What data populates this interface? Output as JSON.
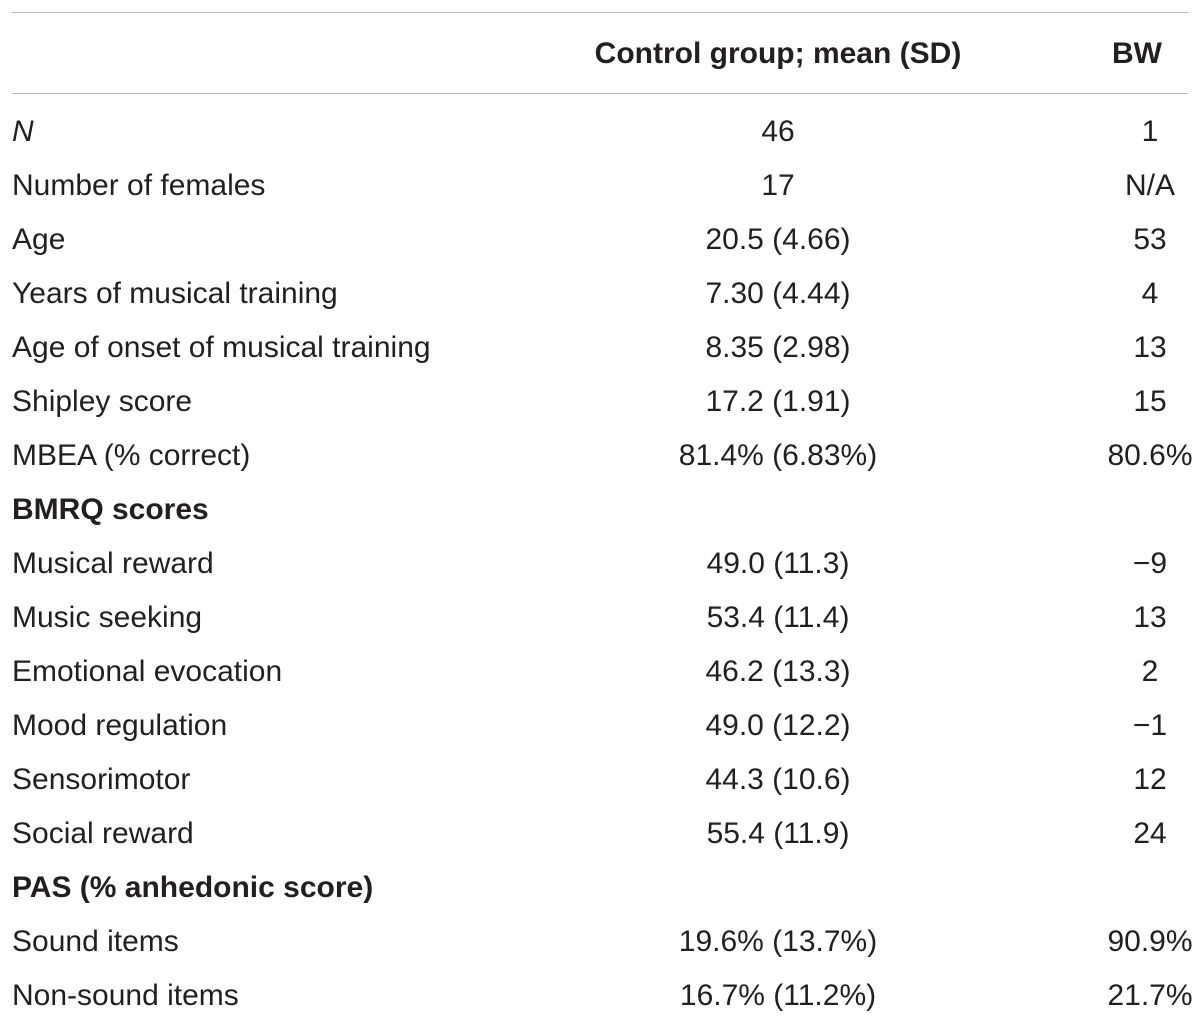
{
  "header": {
    "col1": "",
    "col2": "Control group; mean (SD)",
    "col3": "BW"
  },
  "rows": [
    {
      "label": "N",
      "control": "46",
      "bw": "1"
    },
    {
      "label": "Number of females",
      "control": "17",
      "bw": "N/A"
    },
    {
      "label": "Age",
      "control": "20.5 (4.66)",
      "bw": "53"
    },
    {
      "label": "Years of musical training",
      "control": "7.30 (4.44)",
      "bw": "4"
    },
    {
      "label": "Age of onset of musical training",
      "control": "8.35 (2.98)",
      "bw": "13"
    },
    {
      "label": "Shipley score",
      "control": "17.2 (1.91)",
      "bw": "15"
    },
    {
      "label": "MBEA (% correct)",
      "control": "81.4% (6.83%)",
      "bw": "80.6%"
    },
    {
      "label": "BMRQ scores",
      "control": "",
      "bw": ""
    },
    {
      "label": "Musical reward",
      "control": "49.0 (11.3)",
      "bw": "−9"
    },
    {
      "label": "Music seeking",
      "control": "53.4 (11.4)",
      "bw": "13"
    },
    {
      "label": "Emotional evocation",
      "control": "46.2 (13.3)",
      "bw": "2"
    },
    {
      "label": "Mood regulation",
      "control": "49.0 (12.2)",
      "bw": "−1"
    },
    {
      "label": "Sensorimotor",
      "control": "44.3 (10.6)",
      "bw": "12"
    },
    {
      "label": "Social reward",
      "control": "55.4 (11.9)",
      "bw": "24"
    },
    {
      "label": "PAS (% anhedonic score)",
      "control": "",
      "bw": ""
    },
    {
      "label": "Sound items",
      "control": "19.6% (13.7%)",
      "bw": "90.9%"
    },
    {
      "label": "Non-sound items",
      "control": "16.7% (11.2%)",
      "bw": "21.7%"
    }
  ]
}
